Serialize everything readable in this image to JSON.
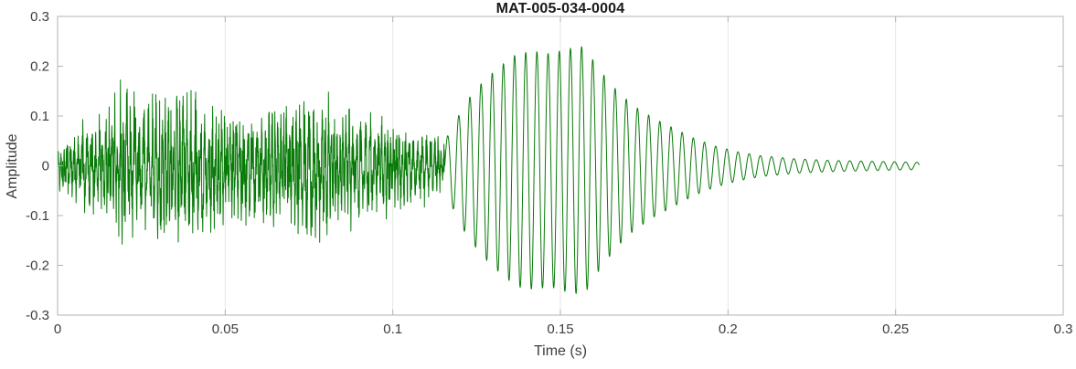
{
  "chart_data": {
    "type": "line",
    "title": "MAT-005-034-0004",
    "xlabel": "Time (s)",
    "ylabel": "Amplitude",
    "xlim": [
      0,
      0.3
    ],
    "ylim": [
      -0.3,
      0.3
    ],
    "xticks": [
      0,
      0.05,
      0.1,
      0.15,
      0.2,
      0.25,
      0.3
    ],
    "xtick_labels": [
      "0",
      "0.05",
      "0.1",
      "0.15",
      "0.2",
      "0.25",
      "0.3"
    ],
    "yticks": [
      -0.3,
      -0.2,
      -0.1,
      0,
      0.1,
      0.2,
      0.3
    ],
    "ytick_labels": [
      "-0.3",
      "-0.2",
      "-0.1",
      "0",
      "0.1",
      "0.2",
      "0.3"
    ],
    "grid": "vertical-faint",
    "legend": "none",
    "colors": {
      "line": "#087a08",
      "box": "#b3b3b3",
      "grid": "#e6e6e6",
      "tick_label": "#3d3d3d",
      "title": "#1a1a1a"
    },
    "series": [
      {
        "name": "waveform",
        "description": "speech-like waveform: dense noisy segment 0 to ~0.115 s (peaks ~±0.2), strong ~300 Hz oscillatory burst 0.115–0.17 s (peak +0.23 / -0.26), decaying ringing tail ending at ~0.257 s",
        "synthesis": {
          "fs": 16000,
          "t_end": 0.2571,
          "split_t": 0.1155,
          "seed": 1337,
          "noise_freq": 950,
          "tone_freq": 300,
          "neg_gain": 1.08,
          "noise_envelope": [
            [
              0,
              0.05
            ],
            [
              0.005,
              0.07
            ],
            [
              0.012,
              0.1
            ],
            [
              0.02,
              0.155
            ],
            [
              0.027,
              0.12
            ],
            [
              0.034,
              0.15
            ],
            [
              0.04,
              0.135
            ],
            [
              0.05,
              0.11
            ],
            [
              0.06,
              0.115
            ],
            [
              0.07,
              0.12
            ],
            [
              0.076,
              0.15
            ],
            [
              0.082,
              0.11
            ],
            [
              0.09,
              0.105
            ],
            [
              0.1,
              0.09
            ],
            [
              0.108,
              0.07
            ],
            [
              0.1155,
              0.05
            ]
          ],
          "tone_envelope": [
            [
              0.1155,
              0.05
            ],
            [
              0.118,
              0.08
            ],
            [
              0.122,
              0.13
            ],
            [
              0.127,
              0.17
            ],
            [
              0.132,
              0.2
            ],
            [
              0.137,
              0.225
            ],
            [
              0.142,
              0.23
            ],
            [
              0.147,
              0.225
            ],
            [
              0.152,
              0.235
            ],
            [
              0.157,
              0.24
            ],
            [
              0.162,
              0.19
            ],
            [
              0.167,
              0.15
            ],
            [
              0.172,
              0.12
            ],
            [
              0.178,
              0.095
            ],
            [
              0.184,
              0.075
            ],
            [
              0.19,
              0.055
            ],
            [
              0.196,
              0.04
            ],
            [
              0.203,
              0.028
            ],
            [
              0.21,
              0.02
            ],
            [
              0.22,
              0.014
            ],
            [
              0.23,
              0.011
            ],
            [
              0.243,
              0.009
            ],
            [
              0.2571,
              0.007
            ]
          ]
        }
      }
    ]
  }
}
